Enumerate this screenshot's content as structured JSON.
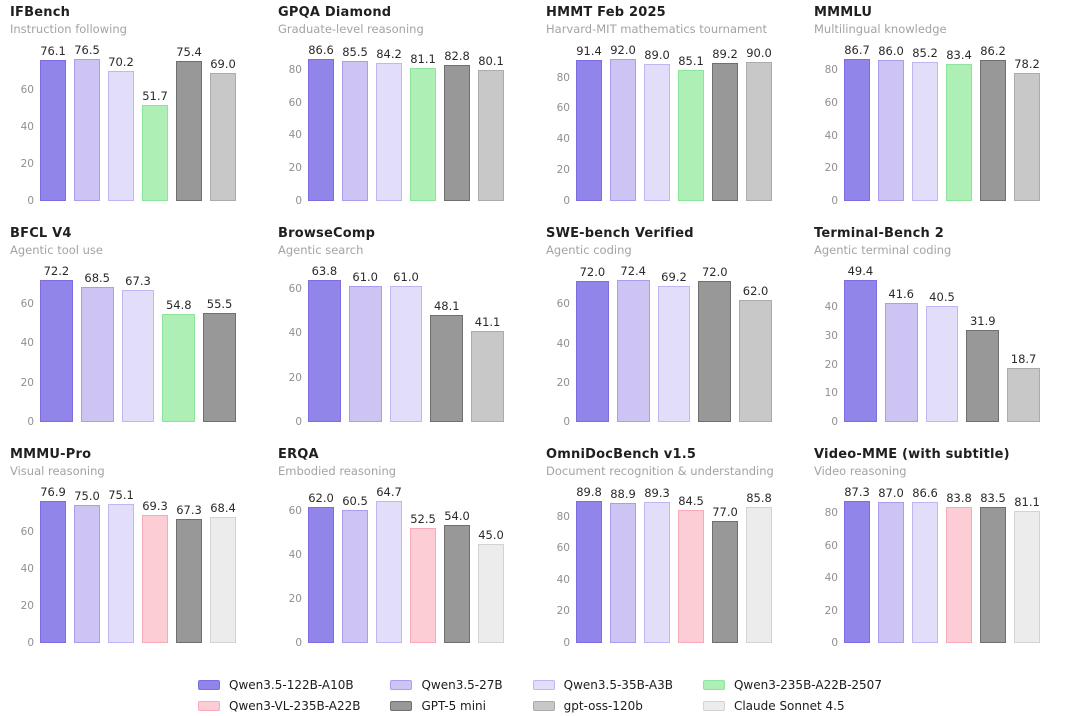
{
  "page": {
    "background": "#ffffff"
  },
  "models": {
    "q122": {
      "label": "Qwen3.5-122B-A10B",
      "fill": "#9185e9",
      "edge": "#7c6de2"
    },
    "q27": {
      "label": "Qwen3.5-27B",
      "fill": "#cdc4f3",
      "edge": "#ab9cee"
    },
    "q35a3": {
      "label": "Qwen3.5-35B-A3B",
      "fill": "#e2ddf8",
      "edge": "#c1b6f2"
    },
    "q235": {
      "label": "Qwen3-235B-A22B-2507",
      "fill": "#aeefb5",
      "edge": "#8fe49b"
    },
    "qvl": {
      "label": "Qwen3-VL-235B-A22B",
      "fill": "#fccdd4",
      "edge": "#f9aab9"
    },
    "gpt5mini": {
      "label": "GPT-5 mini",
      "fill": "#989898",
      "edge": "#6f6f6f"
    },
    "gptoss": {
      "label": "gpt-oss-120b",
      "fill": "#c8c8c8",
      "edge": "#ababab"
    },
    "claude": {
      "label": "Claude Sonnet 4.5",
      "fill": "#ececec",
      "edge": "#d3d3d3"
    }
  },
  "legend": {
    "order": [
      "q122",
      "q27",
      "q35a3",
      "q235",
      "qvl",
      "gpt5mini",
      "gptoss",
      "claude"
    ]
  },
  "chart_data": [
    {
      "type": "bar",
      "title": "IFBench",
      "subtitle": "Instruction following",
      "yticks": [
        0,
        20,
        40,
        60
      ],
      "ylim": [
        0,
        80.3
      ],
      "grid": false,
      "categories": [
        "Qwen3.5-122B-A10B",
        "Qwen3.5-27B",
        "Qwen3.5-35B-A3B",
        "Qwen3-235B-A22B-2507",
        "GPT-5 mini",
        "gpt-oss-120b"
      ],
      "series": [
        {
          "model": "q122",
          "value": 76.1
        },
        {
          "model": "q27",
          "value": 76.5
        },
        {
          "model": "q35a3",
          "value": 70.2
        },
        {
          "model": "q235",
          "value": 51.7
        },
        {
          "model": "gpt5mini",
          "value": 75.4
        },
        {
          "model": "gptoss",
          "value": 69.0
        }
      ]
    },
    {
      "type": "bar",
      "title": "GPQA Diamond",
      "subtitle": "Graduate-level reasoning",
      "yticks": [
        0,
        20,
        40,
        60,
        80
      ],
      "ylim": [
        0,
        90.9
      ],
      "grid": false,
      "categories": [
        "Qwen3.5-122B-A10B",
        "Qwen3.5-27B",
        "Qwen3.5-35B-A3B",
        "Qwen3-235B-A22B-2507",
        "GPT-5 mini",
        "gpt-oss-120b"
      ],
      "series": [
        {
          "model": "q122",
          "value": 86.6
        },
        {
          "model": "q27",
          "value": 85.5
        },
        {
          "model": "q35a3",
          "value": 84.2
        },
        {
          "model": "q235",
          "value": 81.1
        },
        {
          "model": "gpt5mini",
          "value": 82.8
        },
        {
          "model": "gptoss",
          "value": 80.1
        }
      ]
    },
    {
      "type": "bar",
      "title": "HMMT Feb 2025",
      "subtitle": "Harvard-MIT mathematics tournament",
      "yticks": [
        0,
        20,
        40,
        60,
        80
      ],
      "ylim": [
        0,
        96.6
      ],
      "grid": false,
      "categories": [
        "Qwen3.5-122B-A10B",
        "Qwen3.5-27B",
        "Qwen3.5-35B-A3B",
        "Qwen3-235B-A22B-2507",
        "GPT-5 mini",
        "gpt-oss-120b"
      ],
      "series": [
        {
          "model": "q122",
          "value": 91.4
        },
        {
          "model": "q27",
          "value": 92.0
        },
        {
          "model": "q35a3",
          "value": 89.0
        },
        {
          "model": "q235",
          "value": 85.1
        },
        {
          "model": "gpt5mini",
          "value": 89.2
        },
        {
          "model": "gptoss",
          "value": 90.0
        }
      ]
    },
    {
      "type": "bar",
      "title": "MMMLU",
      "subtitle": "Multilingual knowledge",
      "yticks": [
        0,
        20,
        40,
        60,
        80
      ],
      "ylim": [
        0,
        91.0
      ],
      "grid": false,
      "categories": [
        "Qwen3.5-122B-A10B",
        "Qwen3.5-27B",
        "Qwen3.5-35B-A3B",
        "Qwen3-235B-A22B-2507",
        "GPT-5 mini",
        "gpt-oss-120b"
      ],
      "series": [
        {
          "model": "q122",
          "value": 86.7
        },
        {
          "model": "q27",
          "value": 86.0
        },
        {
          "model": "q35a3",
          "value": 85.2
        },
        {
          "model": "q235",
          "value": 83.4
        },
        {
          "model": "gpt5mini",
          "value": 86.2
        },
        {
          "model": "gptoss",
          "value": 78.2
        }
      ]
    },
    {
      "type": "bar",
      "title": "BFCL V4",
      "subtitle": "Agentic tool use",
      "yticks": [
        0,
        20,
        40,
        60
      ],
      "ylim": [
        0,
        75.8
      ],
      "grid": false,
      "categories": [
        "Qwen3.5-122B-A10B",
        "Qwen3.5-27B",
        "Qwen3.5-35B-A3B",
        "Qwen3-235B-A22B-2507",
        "GPT-5 mini"
      ],
      "series": [
        {
          "model": "q122",
          "value": 72.2
        },
        {
          "model": "q27",
          "value": 68.5
        },
        {
          "model": "q35a3",
          "value": 67.3
        },
        {
          "model": "q235",
          "value": 54.8
        },
        {
          "model": "gpt5mini",
          "value": 55.5
        }
      ]
    },
    {
      "type": "bar",
      "title": "BrowseComp",
      "subtitle": "Agentic search",
      "yticks": [
        0,
        20,
        40,
        60
      ],
      "ylim": [
        0,
        67.0
      ],
      "grid": false,
      "categories": [
        "Qwen3.5-122B-A10B",
        "Qwen3.5-27B",
        "Qwen3.5-35B-A3B",
        "GPT-5 mini",
        "gpt-oss-120b"
      ],
      "series": [
        {
          "model": "q122",
          "value": 63.8
        },
        {
          "model": "q27",
          "value": 61.0
        },
        {
          "model": "q35a3",
          "value": 61.0
        },
        {
          "model": "gpt5mini",
          "value": 48.1
        },
        {
          "model": "gptoss",
          "value": 41.1
        }
      ]
    },
    {
      "type": "bar",
      "title": "SWE-bench Verified",
      "subtitle": "Agentic coding",
      "yticks": [
        0,
        20,
        40,
        60
      ],
      "ylim": [
        0,
        76.0
      ],
      "grid": false,
      "categories": [
        "Qwen3.5-122B-A10B",
        "Qwen3.5-27B",
        "Qwen3.5-35B-A3B",
        "GPT-5 mini",
        "gpt-oss-120b"
      ],
      "series": [
        {
          "model": "q122",
          "value": 72.0
        },
        {
          "model": "q27",
          "value": 72.4
        },
        {
          "model": "q35a3",
          "value": 69.2
        },
        {
          "model": "gpt5mini",
          "value": 72.0
        },
        {
          "model": "gptoss",
          "value": 62.0
        }
      ]
    },
    {
      "type": "bar",
      "title": "Terminal-Bench 2",
      "subtitle": "Agentic terminal coding",
      "yticks": [
        0,
        10,
        20,
        30,
        40
      ],
      "ylim": [
        0,
        51.9
      ],
      "grid": false,
      "categories": [
        "Qwen3.5-122B-A10B",
        "Qwen3.5-27B",
        "Qwen3.5-35B-A3B",
        "GPT-5 mini",
        "gpt-oss-120b"
      ],
      "series": [
        {
          "model": "q122",
          "value": 49.4
        },
        {
          "model": "q27",
          "value": 41.6
        },
        {
          "model": "q35a3",
          "value": 40.5
        },
        {
          "model": "gpt5mini",
          "value": 31.9
        },
        {
          "model": "gptoss",
          "value": 18.7
        }
      ]
    },
    {
      "type": "bar",
      "title": "MMMU-Pro",
      "subtitle": "Visual reasoning",
      "yticks": [
        0,
        20,
        40,
        60
      ],
      "ylim": [
        0,
        80.7
      ],
      "grid": false,
      "categories": [
        "Qwen3.5-122B-A10B",
        "Qwen3.5-27B",
        "Qwen3.5-35B-A3B",
        "Qwen3-VL-235B-A22B",
        "GPT-5 mini",
        "Claude Sonnet 4.5"
      ],
      "series": [
        {
          "model": "q122",
          "value": 76.9
        },
        {
          "model": "q27",
          "value": 75.0
        },
        {
          "model": "q35a3",
          "value": 75.1
        },
        {
          "model": "qvl",
          "value": 69.3
        },
        {
          "model": "gpt5mini",
          "value": 67.3
        },
        {
          "model": "claude",
          "value": 68.4
        }
      ]
    },
    {
      "type": "bar",
      "title": "ERQA",
      "subtitle": "Embodied reasoning",
      "yticks": [
        0,
        20,
        40,
        60
      ],
      "ylim": [
        0,
        67.9
      ],
      "grid": false,
      "categories": [
        "Qwen3.5-122B-A10B",
        "Qwen3.5-27B",
        "Qwen3.5-35B-A3B",
        "Qwen3-VL-235B-A22B",
        "GPT-5 mini",
        "Claude Sonnet 4.5"
      ],
      "series": [
        {
          "model": "q122",
          "value": 62.0
        },
        {
          "model": "q27",
          "value": 60.5
        },
        {
          "model": "q35a3",
          "value": 64.7
        },
        {
          "model": "qvl",
          "value": 52.5
        },
        {
          "model": "gpt5mini",
          "value": 54.0
        },
        {
          "model": "claude",
          "value": 45.0
        }
      ]
    },
    {
      "type": "bar",
      "title": "OmniDocBench v1.5",
      "subtitle": "Document recognition & understanding",
      "yticks": [
        0,
        20,
        40,
        60,
        80
      ],
      "ylim": [
        0,
        94.3
      ],
      "grid": false,
      "categories": [
        "Qwen3.5-122B-A10B",
        "Qwen3.5-27B",
        "Qwen3.5-35B-A3B",
        "Qwen3-VL-235B-A22B",
        "GPT-5 mini",
        "Claude Sonnet 4.5"
      ],
      "series": [
        {
          "model": "q122",
          "value": 89.8
        },
        {
          "model": "q27",
          "value": 88.9
        },
        {
          "model": "q35a3",
          "value": 89.3
        },
        {
          "model": "qvl",
          "value": 84.5
        },
        {
          "model": "gpt5mini",
          "value": 77.0
        },
        {
          "model": "claude",
          "value": 85.8
        }
      ]
    },
    {
      "type": "bar",
      "title": "Video-MME (with subtitle)",
      "subtitle": "Video reasoning",
      "yticks": [
        0,
        20,
        40,
        60,
        80
      ],
      "ylim": [
        0,
        91.7
      ],
      "grid": false,
      "categories": [
        "Qwen3.5-122B-A10B",
        "Qwen3.5-27B",
        "Qwen3.5-35B-A3B",
        "Qwen3-VL-235B-A22B",
        "GPT-5 mini",
        "Claude Sonnet 4.5"
      ],
      "series": [
        {
          "model": "q122",
          "value": 87.3
        },
        {
          "model": "q27",
          "value": 87.0
        },
        {
          "model": "q35a3",
          "value": 86.6
        },
        {
          "model": "qvl",
          "value": 83.8
        },
        {
          "model": "gpt5mini",
          "value": 83.5
        },
        {
          "model": "claude",
          "value": 81.1
        }
      ]
    }
  ]
}
